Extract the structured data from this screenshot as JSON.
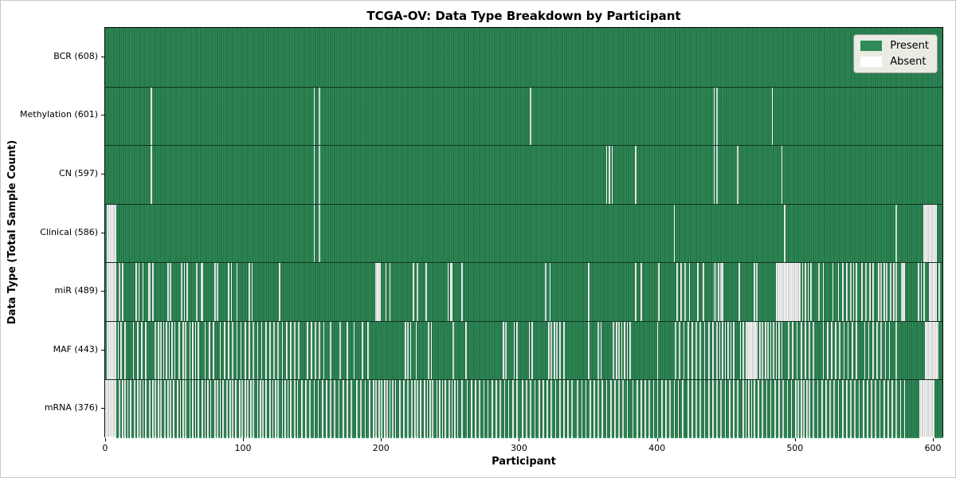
{
  "figure": {
    "title": "TCGA-OV: Data Type Breakdown by Participant",
    "xlabel": "Participant",
    "ylabel": "Data Type (Total Sample Count)"
  },
  "chart_data": {
    "type": "heatmap",
    "title": "TCGA-OV: Data Type Breakdown by Participant",
    "xlabel": "Participant",
    "ylabel": "Data Type (Total Sample Count)",
    "n_participants": 608,
    "x_ticks": [
      0,
      100,
      200,
      300,
      400,
      500,
      600
    ],
    "legend_position": "upper right",
    "grid": false,
    "legend_entries": [
      {
        "label": "Present",
        "color": "#2e8b57"
      },
      {
        "label": "Absent",
        "color": "#ffffff"
      }
    ],
    "colors": {
      "present": "#2e8b57",
      "absent": "#fafafa",
      "bar_edge": "#1d5e3a"
    },
    "rows": [
      {
        "label": "BCR (608)",
        "data_type": "BCR",
        "total_sample_count": 608,
        "absent_indices": []
      },
      {
        "label": "Methylation (601)",
        "data_type": "Methylation",
        "total_sample_count": 601,
        "absent_indices": [
          33,
          151,
          155,
          308,
          441,
          443,
          483
        ]
      },
      {
        "label": "CN (597)",
        "data_type": "CN",
        "total_sample_count": 597,
        "absent_indices": [
          33,
          151,
          155,
          363,
          365,
          367,
          384,
          441,
          443,
          458,
          490
        ]
      },
      {
        "label": "Clinical (586)",
        "data_type": "Clinical",
        "total_sample_count": 586,
        "absent_indices": [
          1,
          2,
          3,
          4,
          5,
          6,
          7,
          151,
          155,
          412,
          492,
          573,
          593,
          594,
          595,
          596,
          597,
          598,
          599,
          600,
          601,
          602
        ]
      },
      {
        "label": "miR (489)",
        "data_type": "miR",
        "total_sample_count": 489,
        "absent_indices": [
          1,
          2,
          3,
          4,
          5,
          6,
          7,
          10,
          12,
          22,
          24,
          27,
          31,
          32,
          34,
          45,
          47,
          55,
          57,
          59,
          66,
          69,
          70,
          79,
          81,
          89,
          91,
          95,
          104,
          106,
          126,
          196,
          197,
          198,
          199,
          203,
          206,
          223,
          226,
          232,
          248,
          250,
          251,
          258,
          319,
          322,
          350,
          384,
          388,
          401,
          414,
          417,
          420,
          423,
          429,
          433,
          441,
          442,
          444,
          446,
          447,
          459,
          470,
          472,
          486,
          487,
          488,
          489,
          490,
          491,
          492,
          493,
          494,
          495,
          496,
          497,
          498,
          499,
          500,
          501,
          502,
          503,
          505,
          507,
          509,
          511,
          517,
          520,
          527,
          531,
          534,
          537,
          540,
          542,
          544,
          548,
          551,
          554,
          556,
          560,
          562,
          564,
          566,
          569,
          571,
          573,
          577,
          578,
          579,
          589,
          591,
          593,
          597,
          598,
          599,
          600,
          601,
          602,
          604
        ]
      },
      {
        "label": "MAF (443)",
        "data_type": "MAF",
        "total_sample_count": 443,
        "absent_indices": [
          1,
          2,
          3,
          4,
          5,
          6,
          7,
          9,
          11,
          14,
          20,
          23,
          26,
          29,
          36,
          38,
          40,
          42,
          44,
          46,
          48,
          50,
          53,
          56,
          58,
          61,
          63,
          65,
          67,
          72,
          75,
          78,
          83,
          86,
          89,
          92,
          95,
          98,
          101,
          104,
          107,
          110,
          113,
          116,
          119,
          122,
          125,
          128,
          131,
          134,
          137,
          140,
          146,
          149,
          152,
          155,
          158,
          163,
          170,
          175,
          180,
          186,
          190,
          217,
          219,
          221,
          225,
          234,
          236,
          252,
          261,
          288,
          290,
          296,
          298,
          307,
          309,
          321,
          323,
          325,
          327,
          329,
          332,
          350,
          357,
          359,
          368,
          370,
          372,
          374,
          376,
          378,
          380,
          400,
          413,
          416,
          419,
          422,
          425,
          428,
          431,
          434,
          437,
          440,
          443,
          445,
          447,
          449,
          451,
          453,
          455,
          460,
          462,
          464,
          465,
          466,
          467,
          468,
          469,
          470,
          471,
          472,
          474,
          476,
          478,
          480,
          482,
          484,
          486,
          488,
          490,
          495,
          498,
          501,
          504,
          507,
          510,
          513,
          520,
          523,
          526,
          529,
          532,
          535,
          538,
          541,
          544,
          550,
          553,
          556,
          559,
          562,
          565,
          568,
          573,
          594,
          595,
          596,
          597,
          598,
          599,
          600,
          601,
          602,
          603
        ]
      },
      {
        "label": "mRNA (376)",
        "data_type": "mRNA",
        "total_sample_count": 376,
        "absent_indices": [
          0,
          1,
          2,
          3,
          4,
          5,
          6,
          7,
          10,
          12,
          14,
          16,
          18,
          21,
          23,
          25,
          27,
          29,
          32,
          34,
          36,
          38,
          40,
          43,
          45,
          47,
          49,
          52,
          54,
          56,
          58,
          61,
          63,
          65,
          67,
          70,
          72,
          74,
          76,
          79,
          81,
          83,
          85,
          88,
          90,
          92,
          94,
          97,
          99,
          101,
          103,
          105,
          107,
          110,
          112,
          114,
          116,
          119,
          121,
          123,
          125,
          128,
          130,
          132,
          134,
          137,
          139,
          142,
          145,
          148,
          151,
          154,
          157,
          160,
          163,
          166,
          169,
          172,
          175,
          178,
          182,
          185,
          188,
          191,
          194,
          196,
          198,
          200,
          202,
          204,
          206,
          208,
          210,
          213,
          216,
          219,
          222,
          224,
          226,
          228,
          231,
          233,
          235,
          237,
          240,
          242,
          244,
          246,
          249,
          251,
          253,
          255,
          258,
          262,
          265,
          268,
          271,
          274,
          277,
          280,
          283,
          286,
          289,
          292,
          295,
          298,
          302,
          305,
          308,
          311,
          314,
          317,
          320,
          323,
          326,
          329,
          332,
          335,
          338,
          342,
          345,
          348,
          351,
          354,
          357,
          360,
          363,
          366,
          369,
          372,
          375,
          378,
          382,
          385,
          388,
          391,
          394,
          397,
          400,
          403,
          406,
          409,
          412,
          415,
          418,
          422,
          425,
          428,
          431,
          434,
          437,
          440,
          443,
          446,
          449,
          452,
          455,
          458,
          462,
          464,
          466,
          468,
          470,
          473,
          476,
          479,
          482,
          485,
          488,
          491,
          494,
          497,
          500,
          502,
          504,
          506,
          508,
          510,
          513,
          516,
          519,
          522,
          525,
          528,
          531,
          534,
          537,
          540,
          543,
          546,
          549,
          552,
          555,
          558,
          561,
          564,
          567,
          570,
          573,
          576,
          579,
          590,
          591,
          592,
          593,
          594,
          595,
          596,
          597,
          598,
          599,
          600
        ]
      }
    ]
  }
}
